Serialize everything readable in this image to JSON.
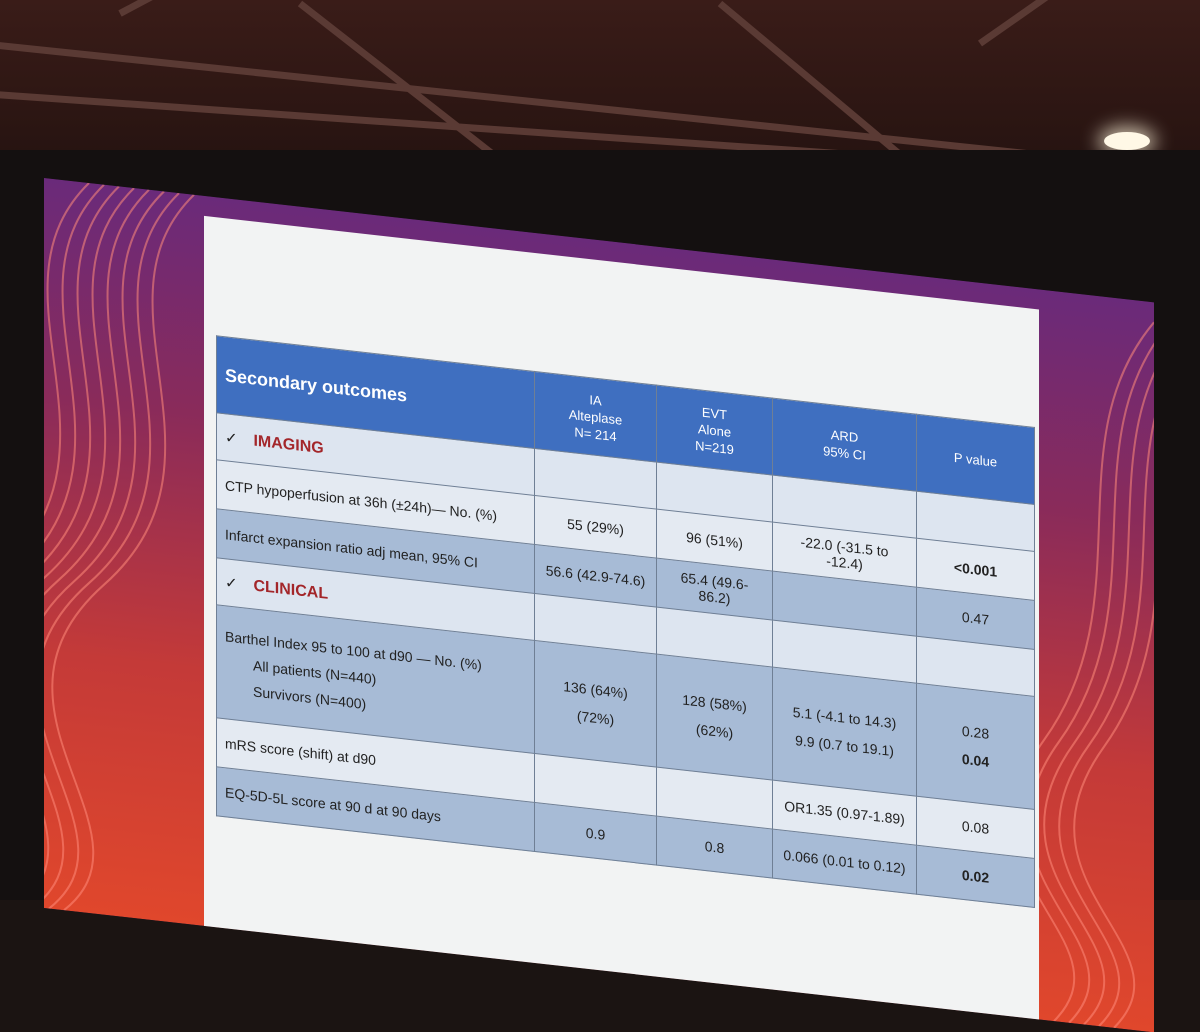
{
  "table": {
    "title": "Secondary outcomes",
    "columns": [
      {
        "line1": "IA",
        "line2": "Alteplase",
        "line3": "N= 214"
      },
      {
        "line1": "EVT",
        "line2": "Alone",
        "line3": "N=219"
      },
      {
        "line1": "ARD",
        "line2": "95% CI",
        "line3": ""
      },
      {
        "line1": "P value",
        "line2": "",
        "line3": ""
      }
    ],
    "check_mark": "✓",
    "sections": {
      "imaging": "IMAGING",
      "clinical": "CLINICAL"
    },
    "rows": {
      "ctp": {
        "label": "CTP hypoperfusion at 36h (±24h)— No. (%)",
        "ia": "55 (29%)",
        "evt": "96 (51%)",
        "ard": "-22.0 (-31.5 to -12.4)",
        "p": "<0.001"
      },
      "infarct": {
        "label": "Infarct expansion ratio  adj mean, 95% CI",
        "ia": "56.6 (42.9-74.6)",
        "evt": "65.4 (49.6-86.2)",
        "ard": "",
        "p": "0.47"
      },
      "barthel": {
        "label": "Barthel Index 95 to 100 at d90 — No. (%)",
        "sub1": "All patients (N=440)",
        "sub2": "Survivors (N=400)",
        "ia1": "136 (64%)",
        "ia2": "(72%)",
        "evt1": "128 (58%)",
        "evt2": "(62%)",
        "ard1": "5.1 (-4.1 to 14.3)",
        "ard2": "9.9  (0.7 to 19.1)",
        "p1": "0.28",
        "p2": "0.04"
      },
      "mrs": {
        "label": "mRS score (shift) at d90",
        "ia": "",
        "evt": "",
        "ard": "OR1.35 (0.97-1.89)",
        "p": "0.08"
      },
      "eq5d": {
        "label": "EQ-5D-5L score at 90 d at 90 days",
        "ia": "0.9",
        "evt": "0.8",
        "ard": "0.066 (0.01 to 0.12)",
        "p": "0.02"
      }
    }
  }
}
